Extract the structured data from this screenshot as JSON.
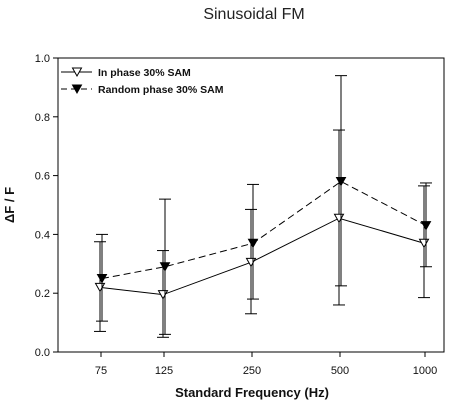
{
  "chart_data": {
    "type": "line",
    "title": "Sinusoidal FM",
    "xlabel": "Standard Frequency (Hz)",
    "ylabel": "ΔF / F",
    "categories": [
      "75",
      "125",
      "250",
      "500",
      "1000"
    ],
    "ylim": [
      0.0,
      1.0
    ],
    "yticks": [
      "0.0",
      "0.2",
      "0.4",
      "0.6",
      "0.8",
      "1.0"
    ],
    "grid": false,
    "legend_position": "top-left",
    "series": [
      {
        "name": "In phase 30% SAM",
        "marker": "open-triangle-down",
        "line_style": "solid",
        "values": [
          0.22,
          0.195,
          0.305,
          0.455,
          0.37
        ],
        "err_low": [
          0.07,
          0.05,
          0.13,
          0.16,
          0.185
        ],
        "err_high": [
          0.375,
          0.345,
          0.485,
          0.755,
          0.565
        ]
      },
      {
        "name": "Random phase 30% SAM",
        "marker": "filled-triangle-down",
        "line_style": "dashed",
        "values": [
          0.25,
          0.29,
          0.37,
          0.58,
          0.43
        ],
        "err_low": [
          0.105,
          0.06,
          0.18,
          0.225,
          0.29
        ],
        "err_high": [
          0.4,
          0.52,
          0.57,
          0.94,
          0.575
        ]
      }
    ]
  }
}
